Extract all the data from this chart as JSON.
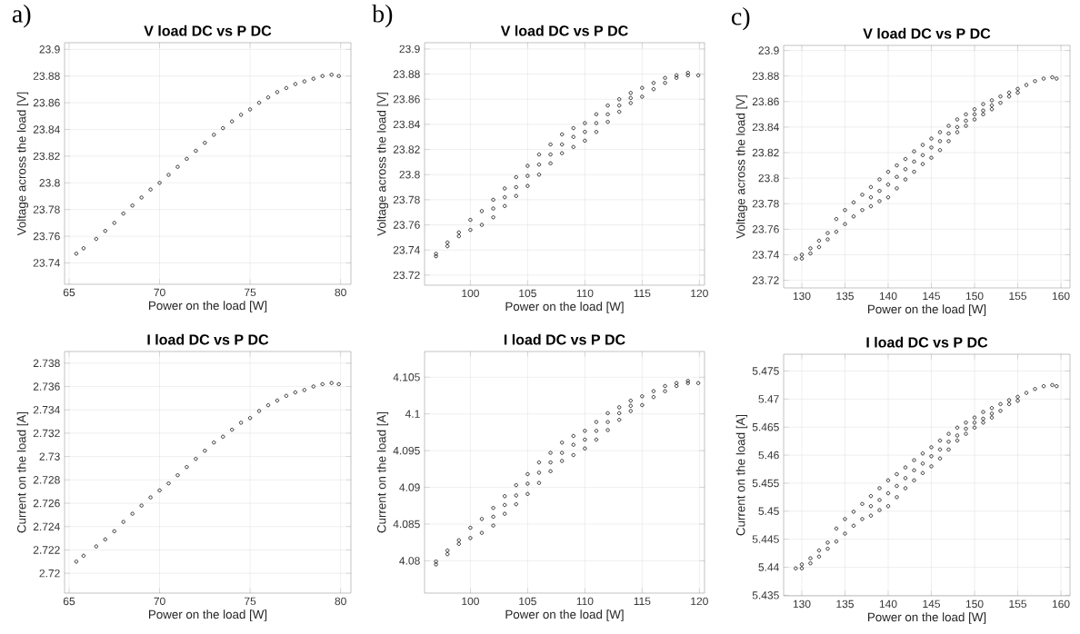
{
  "chart_data": [
    {
      "type": "scatter",
      "title": "V load DC vs P DC",
      "xlabel": "Power on the load [W]",
      "ylabel": "Voltage across the load [V]",
      "annotations": [
        "a)"
      ],
      "color": "#000000",
      "marker": "circle",
      "grid": true,
      "xlim": [
        64.75,
        80.57
      ],
      "ylim": [
        23.724,
        23.905
      ],
      "xticks": [
        65,
        70,
        75,
        80
      ],
      "yticks": [
        23.74,
        23.76,
        23.78,
        23.8,
        23.82,
        23.84,
        23.86,
        23.88,
        23.9
      ],
      "x": [
        65.4,
        65.8,
        66.5,
        67,
        67.5,
        68,
        68.5,
        69,
        69.5,
        70,
        70.5,
        71,
        71.5,
        72,
        72.5,
        73,
        73.5,
        74,
        74.5,
        75,
        75.5,
        76,
        76.5,
        77,
        77.5,
        78,
        78.5,
        79,
        79.5,
        79.9
      ],
      "values": [
        23.747,
        23.751,
        23.758,
        23.764,
        23.77,
        23.777,
        23.783,
        23.789,
        23.795,
        23.8,
        23.806,
        23.812,
        23.818,
        23.824,
        23.83,
        23.836,
        23.841,
        23.846,
        23.851,
        23.855,
        23.86,
        23.864,
        23.868,
        23.871,
        23.874,
        23.876,
        23.878,
        23.88,
        23.881,
        23.88
      ]
    },
    {
      "type": "scatter",
      "title": "V load DC vs P DC",
      "xlabel": "Power on the load [W]",
      "ylabel": "Voltage across the load [V]",
      "annotations": [
        "b)"
      ],
      "color": "#000000",
      "marker": "circle",
      "grid": true,
      "xlim": [
        96.0,
        120.45
      ],
      "ylim": [
        23.712,
        23.905
      ],
      "xticks": [
        100,
        105,
        110,
        115,
        120
      ],
      "yticks": [
        23.72,
        23.74,
        23.76,
        23.78,
        23.8,
        23.82,
        23.84,
        23.86,
        23.88,
        23.9
      ],
      "x": [
        97,
        98,
        99,
        100,
        101,
        102,
        103,
        104,
        105,
        106,
        107,
        108,
        109,
        110,
        111,
        112,
        113,
        114,
        115,
        116,
        117,
        118,
        119,
        97,
        98,
        99,
        100,
        101,
        102,
        103,
        104,
        105,
        106,
        107,
        108,
        109,
        110,
        111,
        112,
        113,
        114,
        115,
        116,
        117,
        118,
        119,
        119.9,
        102,
        103,
        104,
        105,
        106,
        107,
        108,
        109,
        110,
        111,
        112,
        113,
        114
      ],
      "values": [
        23.737,
        23.746,
        23.754,
        23.764,
        23.771,
        23.78,
        23.789,
        23.798,
        23.807,
        23.816,
        23.824,
        23.832,
        23.837,
        23.841,
        23.848,
        23.855,
        23.86,
        23.865,
        23.869,
        23.873,
        23.877,
        23.879,
        23.881,
        23.735,
        23.743,
        23.751,
        23.756,
        23.76,
        23.766,
        23.775,
        23.783,
        23.791,
        23.8,
        23.809,
        23.817,
        23.822,
        23.827,
        23.834,
        23.842,
        23.85,
        23.857,
        23.862,
        23.868,
        23.873,
        23.877,
        23.879,
        23.879,
        23.773,
        23.782,
        23.79,
        23.799,
        23.808,
        23.816,
        23.824,
        23.83,
        23.834,
        23.841,
        23.848,
        23.855,
        23.861
      ]
    },
    {
      "type": "scatter",
      "title": "V load DC vs P DC",
      "xlabel": "Power on the load [W]",
      "ylabel": "Voltage across the load [V]",
      "annotations": [
        "c)"
      ],
      "color": "#000000",
      "marker": "circle",
      "grid": true,
      "xlim": [
        127.9,
        161.05
      ],
      "ylim": [
        23.714,
        23.904
      ],
      "xticks": [
        130,
        135,
        140,
        145,
        150,
        155,
        160
      ],
      "yticks": [
        23.72,
        23.74,
        23.76,
        23.78,
        23.8,
        23.82,
        23.84,
        23.86,
        23.88,
        23.9
      ],
      "x": [
        129.3,
        130,
        131,
        132,
        133,
        134,
        135,
        136,
        137,
        138,
        139,
        140,
        141,
        142,
        143,
        144,
        145,
        146,
        147,
        148,
        149,
        150,
        151,
        152,
        153,
        154,
        155,
        156,
        157,
        158,
        159,
        159.5,
        130,
        131,
        132,
        133,
        134,
        135,
        136,
        137,
        138,
        139,
        140,
        141,
        142,
        143,
        144,
        145,
        146,
        147,
        148,
        149,
        150,
        151,
        152,
        153,
        154,
        155,
        138,
        139,
        140,
        141,
        142,
        143,
        144,
        145,
        146,
        147,
        148,
        149,
        150,
        151,
        152
      ],
      "values": [
        23.737,
        23.74,
        23.745,
        23.751,
        23.757,
        23.768,
        23.775,
        23.781,
        23.787,
        23.793,
        23.799,
        23.805,
        23.81,
        23.815,
        23.821,
        23.826,
        23.831,
        23.836,
        23.841,
        23.846,
        23.85,
        23.854,
        23.858,
        23.861,
        23.864,
        23.867,
        23.87,
        23.873,
        23.876,
        23.878,
        23.879,
        23.878,
        23.737,
        23.741,
        23.746,
        23.752,
        23.758,
        23.764,
        23.77,
        23.775,
        23.778,
        23.782,
        23.785,
        23.792,
        23.799,
        23.805,
        23.811,
        23.816,
        23.822,
        23.829,
        23.836,
        23.841,
        23.846,
        23.85,
        23.854,
        23.859,
        23.864,
        23.867,
        23.785,
        23.79,
        23.795,
        23.801,
        23.807,
        23.813,
        23.818,
        23.824,
        23.829,
        23.835,
        23.84,
        23.845,
        23.85,
        23.853,
        23.857
      ]
    },
    {
      "type": "scatter",
      "title": "I load DC vs P DC",
      "xlabel": "Power on the load [W]",
      "ylabel": "Current on the load [A]",
      "color": "#000000",
      "marker": "circle",
      "grid": true,
      "xlim": [
        64.75,
        80.57
      ],
      "ylim": [
        2.7183,
        2.739
      ],
      "xticks": [
        65,
        70,
        75,
        80
      ],
      "yticks": [
        2.72,
        2.722,
        2.724,
        2.726,
        2.728,
        2.73,
        2.732,
        2.734,
        2.736,
        2.738
      ],
      "x": [
        65.4,
        65.8,
        66.5,
        67,
        67.5,
        68,
        68.5,
        69,
        69.5,
        70,
        70.5,
        71,
        71.5,
        72,
        72.5,
        73,
        73.5,
        74,
        74.5,
        75,
        75.5,
        76,
        76.5,
        77,
        77.5,
        78,
        78.5,
        79,
        79.5,
        79.9
      ],
      "values": [
        2.721,
        2.7215,
        2.7223,
        2.7229,
        2.7236,
        2.7244,
        2.7251,
        2.7258,
        2.7265,
        2.7271,
        2.7277,
        2.7284,
        2.7291,
        2.7298,
        2.7305,
        2.7312,
        2.7317,
        2.7323,
        2.7329,
        2.7333,
        2.7339,
        2.7344,
        2.7348,
        2.7352,
        2.7355,
        2.7357,
        2.736,
        2.7362,
        2.7363,
        2.7362
      ]
    },
    {
      "type": "scatter",
      "title": "I load DC vs P DC",
      "xlabel": "Power on the load [W]",
      "ylabel": "Current on the load [A]",
      "color": "#000000",
      "marker": "circle",
      "grid": true,
      "xlim": [
        96.0,
        120.45
      ],
      "ylim": [
        4.0756,
        4.1085
      ],
      "xticks": [
        100,
        105,
        110,
        115,
        120
      ],
      "yticks": [
        4.08,
        4.085,
        4.09,
        4.095,
        4.1,
        4.105
      ],
      "x": [
        97,
        98,
        99,
        100,
        101,
        102,
        103,
        104,
        105,
        106,
        107,
        108,
        109,
        110,
        111,
        112,
        113,
        114,
        115,
        116,
        117,
        118,
        119,
        97,
        98,
        99,
        100,
        101,
        102,
        103,
        104,
        105,
        106,
        107,
        108,
        109,
        110,
        111,
        112,
        113,
        114,
        115,
        116,
        117,
        118,
        119,
        119.9,
        102,
        103,
        104,
        105,
        106,
        107,
        108,
        109,
        110,
        111,
        112,
        113,
        114
      ],
      "values": [
        4.0799,
        4.0814,
        4.0828,
        4.0845,
        4.0857,
        4.0872,
        4.0888,
        4.0903,
        4.0918,
        4.0934,
        4.0947,
        4.0961,
        4.097,
        4.0977,
        4.0989,
        4.1001,
        4.1009,
        4.1018,
        4.1024,
        4.1031,
        4.1038,
        4.1042,
        4.1045,
        4.0795,
        4.0809,
        4.0823,
        4.0831,
        4.0838,
        4.0848,
        4.0864,
        4.0877,
        4.0891,
        4.0906,
        4.0922,
        4.0936,
        4.0944,
        4.0953,
        4.0965,
        4.0978,
        4.0992,
        4.1004,
        4.1012,
        4.1023,
        4.1031,
        4.1038,
        4.1042,
        4.1042,
        4.086,
        4.0876,
        4.0889,
        4.0905,
        4.092,
        4.0934,
        4.0947,
        4.0958,
        4.0965,
        4.0977,
        4.0989,
        4.1001,
        4.1011
      ]
    },
    {
      "type": "scatter",
      "title": "I load DC vs P DC",
      "xlabel": "Power on the load [W]",
      "ylabel": "Current on the load [A]",
      "color": "#000000",
      "marker": "circle",
      "grid": true,
      "xlim": [
        127.9,
        161.05
      ],
      "ylim": [
        5.4349,
        5.478
      ],
      "xticks": [
        130,
        135,
        140,
        145,
        150,
        155,
        160
      ],
      "yticks": [
        5.435,
        5.44,
        5.445,
        5.45,
        5.455,
        5.46,
        5.465,
        5.47,
        5.475
      ],
      "x": [
        129.3,
        130,
        131,
        132,
        133,
        134,
        135,
        136,
        137,
        138,
        139,
        140,
        141,
        142,
        143,
        144,
        145,
        146,
        147,
        148,
        149,
        150,
        151,
        152,
        153,
        154,
        155,
        156,
        157,
        158,
        159,
        159.5,
        130,
        131,
        132,
        133,
        134,
        135,
        136,
        137,
        138,
        139,
        140,
        141,
        142,
        143,
        144,
        145,
        146,
        147,
        148,
        149,
        150,
        151,
        152,
        153,
        154,
        155,
        138,
        139,
        140,
        141,
        142,
        143,
        144,
        145,
        146,
        147,
        148,
        149,
        150,
        151,
        152
      ],
      "values": [
        5.4398,
        5.4405,
        5.4416,
        5.443,
        5.4444,
        5.4469,
        5.4486,
        5.4499,
        5.4513,
        5.4527,
        5.4541,
        5.4555,
        5.4566,
        5.4578,
        5.4591,
        5.4603,
        5.4614,
        5.4626,
        5.4638,
        5.4649,
        5.4658,
        5.4667,
        5.4677,
        5.4684,
        5.4691,
        5.4698,
        5.4704,
        5.4711,
        5.4718,
        5.4723,
        5.4725,
        5.4723,
        5.4398,
        5.4407,
        5.4419,
        5.4433,
        5.4446,
        5.446,
        5.4474,
        5.4486,
        5.4492,
        5.4502,
        5.4509,
        5.4525,
        5.4541,
        5.4555,
        5.4568,
        5.458,
        5.4594,
        5.461,
        5.4626,
        5.4638,
        5.4649,
        5.4658,
        5.4667,
        5.4679,
        5.4691,
        5.4697,
        5.4509,
        5.452,
        5.4532,
        5.4545,
        5.4559,
        5.4573,
        5.4585,
        5.4598,
        5.461,
        5.4624,
        5.4635,
        5.4647,
        5.4658,
        5.4665,
        5.4674
      ]
    }
  ]
}
